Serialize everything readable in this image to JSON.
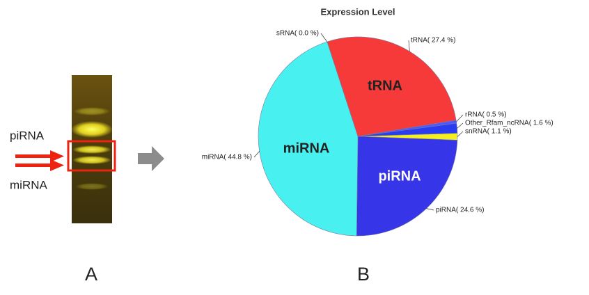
{
  "chart_data": {
    "type": "pie",
    "title": "Expression Level",
    "categories": [
      "sRNA",
      "tRNA",
      "rRNA",
      "Other_Rfam_ncRNA",
      "snRNA",
      "piRNA",
      "miRNA"
    ],
    "values": [
      0.0,
      27.4,
      0.5,
      1.6,
      1.1,
      24.6,
      44.8
    ],
    "value_labels": [
      "sRNA( 0.0 %)",
      "tRNA( 27.4 %)",
      "rRNA( 0.5 %)",
      "Other_Rfam_ncRNA( 1.6 %)",
      "snRNA( 1.1 %)",
      "piRNA( 24.6 %)",
      "miRNA( 44.8 %)"
    ],
    "colors": [
      "#8080ff",
      "#f63a3a",
      "#4a5aff",
      "#2a3cf0",
      "#f4f020",
      "#3636e8",
      "#48f0f0"
    ]
  },
  "gel": {
    "labels": [
      "piRNA",
      "miRNA"
    ]
  },
  "panels": [
    "A",
    "B"
  ]
}
